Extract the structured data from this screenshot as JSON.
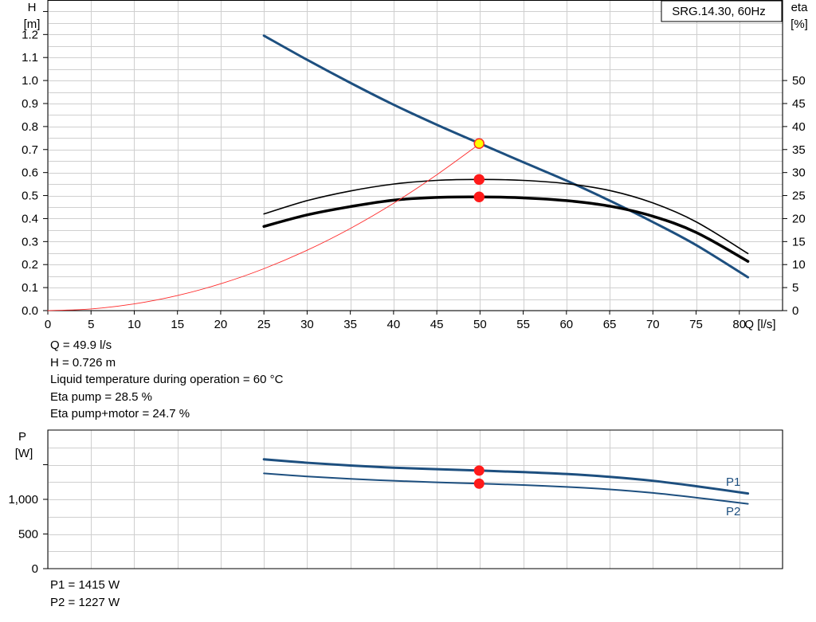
{
  "chart_data": [
    {
      "type": "line",
      "legend_box": "SRG.14.30, 60Hz",
      "legend_position": "top-right",
      "grid": true,
      "x_axis": {
        "label": "Q [l/s]",
        "range": [
          0,
          85
        ],
        "ticks": [
          0,
          5,
          10,
          15,
          20,
          25,
          30,
          35,
          40,
          45,
          50,
          55,
          60,
          65,
          70,
          75,
          80
        ]
      },
      "y_left": {
        "label_line1": "H",
        "label_line2": "[m]",
        "range": [
          0,
          1.35
        ],
        "ticks": [
          0.0,
          0.1,
          0.2,
          0.3,
          0.4,
          0.5,
          0.6,
          0.7,
          0.8,
          0.9,
          1.0,
          1.1,
          1.2
        ],
        "tick_labels": [
          "0.0",
          "0.1",
          "0.2",
          "0.3",
          "0.4",
          "0.5",
          "0.6",
          "0.7",
          "0.8",
          "0.9",
          "1.0",
          "1.1",
          "1.2"
        ]
      },
      "y_right": {
        "label_line1": "eta",
        "label_line2": "[%]",
        "range": [
          0,
          67.5
        ],
        "ticks": [
          0,
          5,
          10,
          15,
          20,
          25,
          30,
          35,
          40,
          45,
          50
        ]
      },
      "series": [
        {
          "key": "head_curve",
          "axis": "left",
          "color": "#1d4f7f",
          "width": 3,
          "x": [
            25,
            30,
            35,
            40,
            45,
            50,
            55,
            60,
            65,
            70,
            75,
            81
          ],
          "y": [
            1.195,
            1.09,
            0.99,
            0.895,
            0.808,
            0.726,
            0.645,
            0.565,
            0.478,
            0.385,
            0.285,
            0.145
          ]
        },
        {
          "key": "eta_pump_curve",
          "axis": "right",
          "color": "#000000",
          "width": 1.6,
          "x": [
            25,
            30,
            35,
            40,
            45,
            50,
            55,
            60,
            65,
            70,
            75,
            81
          ],
          "y": [
            21.0,
            23.9,
            26.0,
            27.5,
            28.3,
            28.5,
            28.3,
            27.6,
            26.1,
            23.4,
            19.3,
            12.4
          ]
        },
        {
          "key": "eta_pump_motor_curve",
          "axis": "right",
          "color": "#000000",
          "width": 3.5,
          "x": [
            25,
            30,
            35,
            40,
            45,
            50,
            55,
            60,
            65,
            70,
            75,
            81
          ],
          "y": [
            18.3,
            20.8,
            22.6,
            24.0,
            24.6,
            24.7,
            24.5,
            23.9,
            22.7,
            20.5,
            17.0,
            10.7
          ]
        },
        {
          "key": "system_curve",
          "axis": "left",
          "color": "#ff2a2a",
          "width": 0.9,
          "x": [
            0,
            5,
            10,
            15,
            20,
            25,
            30,
            35,
            40,
            45,
            50
          ],
          "y": [
            0,
            0.0073,
            0.0292,
            0.0656,
            0.1166,
            0.1822,
            0.2624,
            0.3571,
            0.4664,
            0.5903,
            0.726
          ]
        }
      ],
      "markers": [
        {
          "key": "duty-point-marker",
          "axis": "left",
          "x": 49.9,
          "y": 0.726,
          "fill": "#ffff00",
          "stroke": "#ff2a2a"
        },
        {
          "key": "eta-pump-marker",
          "axis": "right",
          "x": 49.9,
          "y": 28.5,
          "fill": "#ff1a1a",
          "stroke": "#ff1a1a"
        },
        {
          "key": "eta-pump-motor-marker",
          "axis": "right",
          "x": 49.9,
          "y": 24.7,
          "fill": "#ff1a1a",
          "stroke": "#ff1a1a"
        }
      ]
    },
    {
      "type": "line",
      "grid": true,
      "x_axis": {
        "range": [
          0,
          85
        ],
        "ticks": [
          0,
          5,
          10,
          15,
          20,
          25,
          30,
          35,
          40,
          45,
          50,
          55,
          60,
          65,
          70,
          75,
          80
        ]
      },
      "y_left": {
        "label_line1": "P",
        "label_line2": "[W]",
        "range": [
          0,
          2000
        ],
        "ticks": [
          0,
          500,
          1000,
          1500
        ],
        "tick_labels": [
          "0",
          "500",
          "1,000",
          ""
        ]
      },
      "series": [
        {
          "key": "p1_curve",
          "name": "P1",
          "color": "#1d4f7f",
          "width": 3,
          "x": [
            25,
            30,
            35,
            40,
            45,
            50,
            55,
            60,
            65,
            70,
            75,
            81
          ],
          "y": [
            1578,
            1528,
            1488,
            1457,
            1435,
            1415,
            1393,
            1366,
            1325,
            1268,
            1190,
            1085
          ]
        },
        {
          "key": "p2_curve",
          "name": "P2",
          "color": "#1d4f7f",
          "width": 2,
          "x": [
            25,
            30,
            35,
            40,
            45,
            50,
            55,
            60,
            65,
            70,
            75,
            81
          ],
          "y": [
            1375,
            1330,
            1296,
            1268,
            1246,
            1227,
            1207,
            1180,
            1144,
            1093,
            1025,
            935
          ]
        }
      ],
      "markers": [
        {
          "key": "p1-marker",
          "x": 49.9,
          "y": 1415,
          "fill": "#ff1a1a",
          "stroke": "#ff1a1a"
        },
        {
          "key": "p2-marker",
          "x": 49.9,
          "y": 1227,
          "fill": "#ff1a1a",
          "stroke": "#ff1a1a"
        }
      ]
    }
  ],
  "info_main": {
    "q": "Q = 49.9 l/s",
    "h": "H = 0.726 m",
    "temp": "Liquid temperature during operation = 60 °C",
    "eta_pump": "Eta pump = 28.5 %",
    "eta_pump_motor": "Eta pump+motor = 24.7 %"
  },
  "info_power": {
    "p1": "P1 = 1415 W",
    "p2": "P2 = 1227 W"
  }
}
